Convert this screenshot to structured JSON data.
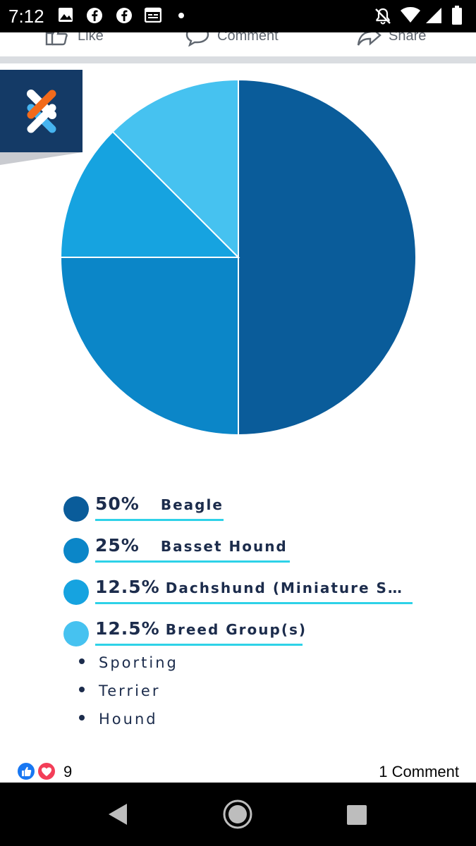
{
  "status_bar": {
    "time": "7:12",
    "left_icons": [
      "image-icon",
      "facebook-icon",
      "facebook-icon",
      "calendar-icon",
      "dot-icon"
    ],
    "right_icons": [
      "bell-off-icon",
      "wifi-icon",
      "signal-icon",
      "battery-icon"
    ]
  },
  "post_actions": {
    "like_label": "Like",
    "comment_label": "Comment",
    "share_label": "Share"
  },
  "logo": {
    "icon": "crossed-bands-logo-icon"
  },
  "chart_data": {
    "type": "pie",
    "title": "",
    "slices": [
      {
        "label": "Beagle",
        "value": 50,
        "color": "#0a5c9a"
      },
      {
        "label": "Basset Hound",
        "value": 25,
        "color": "#0b86c8"
      },
      {
        "label": "Dachshund (Miniature S…",
        "value": 12.5,
        "color": "#16a3e0"
      },
      {
        "label": "Breed Group(s)",
        "value": 12.5,
        "color": "#46c2f0"
      }
    ],
    "legend_placement": "bottom"
  },
  "legend": [
    {
      "pct": "50%",
      "name": "Beagle",
      "color": "#0a5c9a"
    },
    {
      "pct": "25%",
      "name": "Basset Hound",
      "color": "#0b86c8"
    },
    {
      "pct": "12.5%",
      "name": "Dachshund (Miniature S…",
      "color": "#16a3e0"
    },
    {
      "pct": "12.5%",
      "name": "Breed Group(s)",
      "color": "#46c2f0"
    }
  ],
  "breed_groups": [
    "Sporting",
    "Terrier",
    "Hound"
  ],
  "reactions": {
    "icons": [
      "like-icon",
      "love-icon"
    ],
    "count": "9",
    "comments": "1 Comment"
  },
  "nav_bar": {
    "icons": [
      "back-icon",
      "home-icon",
      "recents-icon"
    ]
  }
}
